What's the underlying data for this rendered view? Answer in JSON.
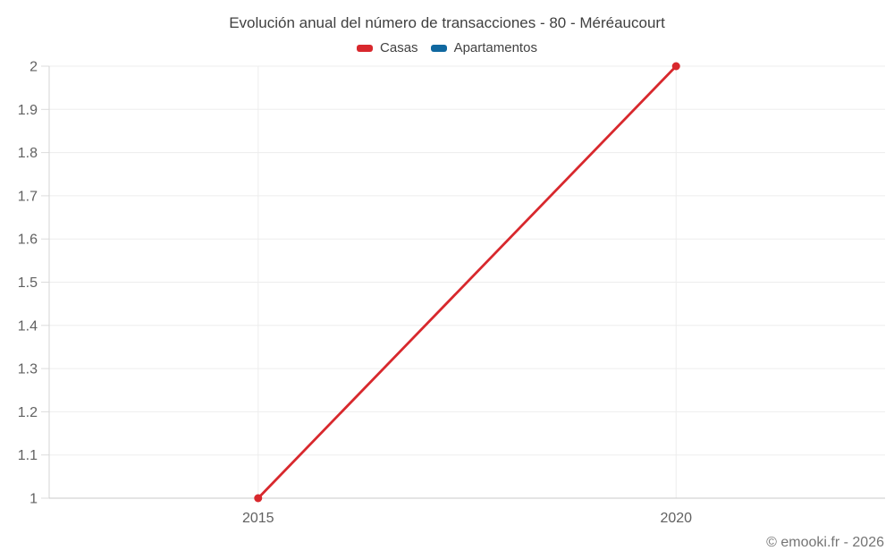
{
  "chart_data": {
    "type": "line",
    "title": "Evolución anual del número de transacciones - 80 - Méréaucourt",
    "categories": [
      "2015",
      "2020"
    ],
    "series": [
      {
        "name": "Casas",
        "color": "#d8282d",
        "values": [
          1,
          2
        ]
      },
      {
        "name": "Apartamentos",
        "color": "#1068a0",
        "values": []
      }
    ],
    "ylim": [
      1,
      2
    ],
    "y_ticks": [
      1,
      1.1,
      1.2,
      1.3,
      1.4,
      1.5,
      1.6,
      1.7,
      1.8,
      1.9,
      2
    ],
    "y_tick_labels": [
      "1",
      "1.1",
      "1.2",
      "1.3",
      "1.4",
      "1.5",
      "1.6",
      "1.7",
      "1.8",
      "1.9",
      "2"
    ],
    "xlabel": "",
    "ylabel": "",
    "grid": true,
    "legend_position": "top"
  },
  "colors": {
    "grid": "#ededed",
    "tick": "#dcdcdc",
    "axis_left": "#d6d6d6",
    "axis_bottom": "#c9c9c9",
    "axis_label_text": "#616161",
    "title_text": "#3f3f3f",
    "legend_text": "#424242",
    "footer_text": "#757575"
  },
  "footer": {
    "credit": "© emooki.fr - 2026"
  }
}
